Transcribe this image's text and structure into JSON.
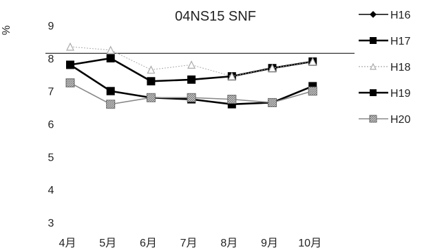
{
  "chart_data": {
    "type": "line",
    "title": "04NS15 SNF",
    "ylabel": "%",
    "xlabel": "",
    "categories": [
      "4月",
      "5月",
      "6月",
      "7月",
      "8月",
      "9月",
      "10月"
    ],
    "ylim": [
      3,
      9
    ],
    "yticks": [
      "3",
      "4",
      "5",
      "6",
      "7",
      "8",
      "9"
    ],
    "grid": false,
    "legend_position": "right",
    "reference_line": 8.15,
    "series": [
      {
        "name": "H16",
        "marker": "diamond",
        "color": "#000000",
        "values": [
          null,
          null,
          null,
          null,
          null,
          null,
          null
        ]
      },
      {
        "name": "H17",
        "marker": "square",
        "color": "#000000",
        "values": [
          7.8,
          8.0,
          7.3,
          7.35,
          7.45,
          7.7,
          7.9
        ]
      },
      {
        "name": "H18",
        "marker": "triangle",
        "color": "#aaaaaa",
        "values": [
          8.35,
          8.25,
          7.65,
          7.8,
          7.45,
          7.7,
          7.9
        ]
      },
      {
        "name": "H19",
        "marker": "square",
        "color": "#000000",
        "values": [
          7.8,
          7.0,
          6.8,
          6.75,
          6.6,
          6.65,
          7.15
        ]
      },
      {
        "name": "H20",
        "marker": "hatched-square",
        "color": "#888888",
        "values": [
          7.25,
          6.6,
          6.8,
          6.8,
          6.75,
          6.65,
          7.0
        ]
      }
    ]
  }
}
